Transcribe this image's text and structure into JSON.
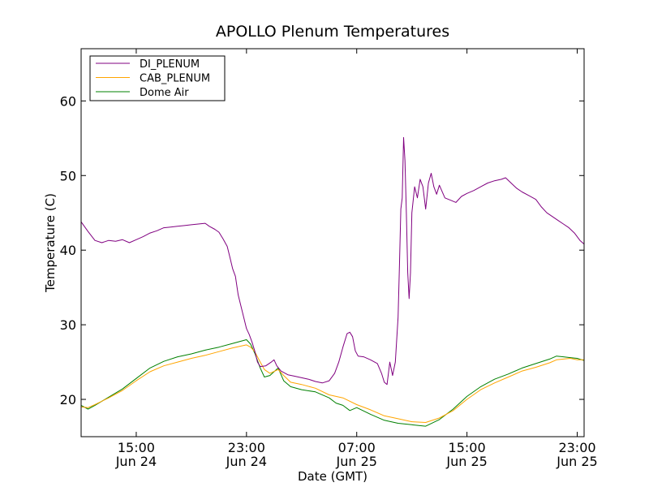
{
  "chart_data": {
    "type": "line",
    "title": "APOLLO Plenum Temperatures",
    "xlabel": "Date (GMT)",
    "ylabel": "Temperature (C)",
    "x_unit": "hours since Jun 24 00:00 GMT",
    "xlim": [
      11.0,
      47.5
    ],
    "ylim": [
      15,
      67
    ],
    "yticks": [
      20,
      30,
      40,
      50,
      60
    ],
    "xticks": [
      {
        "x": 15,
        "time": "15:00",
        "date": "Jun 24"
      },
      {
        "x": 23,
        "time": "23:00",
        "date": "Jun 24"
      },
      {
        "x": 31,
        "time": "07:00",
        "date": "Jun 25"
      },
      {
        "x": 39,
        "time": "15:00",
        "date": "Jun 25"
      },
      {
        "x": 47,
        "time": "23:00",
        "date": "Jun 25"
      }
    ],
    "legend_position": "top-left",
    "series": [
      {
        "name": "DI_PLENUM",
        "color": "#800080",
        "points": [
          [
            11.0,
            43.8
          ],
          [
            11.5,
            42.5
          ],
          [
            12.0,
            41.3
          ],
          [
            12.5,
            41.0
          ],
          [
            13.0,
            41.3
          ],
          [
            13.5,
            41.2
          ],
          [
            14.0,
            41.4
          ],
          [
            14.5,
            41.0
          ],
          [
            15.0,
            41.4
          ],
          [
            15.5,
            41.8
          ],
          [
            16.0,
            42.3
          ],
          [
            16.5,
            42.6
          ],
          [
            17.0,
            43.0
          ],
          [
            17.5,
            43.1
          ],
          [
            18.0,
            43.2
          ],
          [
            18.5,
            43.3
          ],
          [
            19.0,
            43.4
          ],
          [
            19.5,
            43.5
          ],
          [
            20.0,
            43.6
          ],
          [
            20.3,
            43.2
          ],
          [
            20.7,
            42.8
          ],
          [
            21.0,
            42.4
          ],
          [
            21.3,
            41.5
          ],
          [
            21.6,
            40.5
          ],
          [
            21.8,
            39.0
          ],
          [
            22.0,
            37.5
          ],
          [
            22.2,
            36.5
          ],
          [
            22.4,
            34.0
          ],
          [
            22.6,
            32.5
          ],
          [
            22.8,
            31.0
          ],
          [
            23.0,
            29.5
          ],
          [
            23.2,
            28.7
          ],
          [
            23.4,
            27.7
          ],
          [
            23.6,
            26.5
          ],
          [
            23.8,
            25.0
          ],
          [
            24.0,
            24.4
          ],
          [
            24.4,
            24.5
          ],
          [
            24.8,
            25.0
          ],
          [
            25.0,
            25.3
          ],
          [
            25.2,
            24.5
          ],
          [
            25.5,
            23.8
          ],
          [
            26.0,
            23.3
          ],
          [
            26.5,
            23.1
          ],
          [
            27.0,
            22.9
          ],
          [
            27.5,
            22.7
          ],
          [
            28.0,
            22.4
          ],
          [
            28.5,
            22.2
          ],
          [
            29.0,
            22.5
          ],
          [
            29.4,
            23.5
          ],
          [
            29.7,
            25.0
          ],
          [
            30.0,
            27.0
          ],
          [
            30.3,
            28.8
          ],
          [
            30.5,
            29.0
          ],
          [
            30.7,
            28.4
          ],
          [
            30.9,
            26.5
          ],
          [
            31.1,
            25.8
          ],
          [
            31.5,
            25.7
          ],
          [
            32.0,
            25.3
          ],
          [
            32.5,
            24.8
          ],
          [
            32.8,
            23.5
          ],
          [
            33.0,
            22.3
          ],
          [
            33.2,
            22.0
          ],
          [
            33.4,
            25.0
          ],
          [
            33.6,
            23.2
          ],
          [
            33.8,
            25.0
          ],
          [
            34.0,
            31.0
          ],
          [
            34.1,
            38.0
          ],
          [
            34.2,
            45.5
          ],
          [
            34.3,
            47.0
          ],
          [
            34.4,
            55.1
          ],
          [
            34.5,
            52.0
          ],
          [
            34.6,
            45.0
          ],
          [
            34.7,
            37.0
          ],
          [
            34.8,
            33.5
          ],
          [
            34.9,
            37.0
          ],
          [
            35.0,
            45.0
          ],
          [
            35.2,
            48.5
          ],
          [
            35.4,
            47.0
          ],
          [
            35.6,
            49.5
          ],
          [
            35.8,
            48.5
          ],
          [
            36.0,
            45.5
          ],
          [
            36.2,
            49.0
          ],
          [
            36.4,
            50.3
          ],
          [
            36.6,
            48.5
          ],
          [
            36.8,
            47.5
          ],
          [
            37.0,
            48.7
          ],
          [
            37.4,
            47.0
          ],
          [
            37.8,
            46.7
          ],
          [
            38.2,
            46.4
          ],
          [
            38.6,
            47.2
          ],
          [
            39.0,
            47.6
          ],
          [
            39.5,
            48.0
          ],
          [
            40.0,
            48.5
          ],
          [
            40.5,
            49.0
          ],
          [
            41.0,
            49.3
          ],
          [
            41.5,
            49.5
          ],
          [
            41.8,
            49.7
          ],
          [
            42.2,
            49.0
          ],
          [
            42.6,
            48.3
          ],
          [
            43.0,
            47.8
          ],
          [
            43.5,
            47.3
          ],
          [
            44.0,
            46.8
          ],
          [
            44.4,
            45.8
          ],
          [
            44.8,
            45.0
          ],
          [
            45.2,
            44.5
          ],
          [
            45.6,
            44.0
          ],
          [
            46.0,
            43.5
          ],
          [
            46.4,
            43.0
          ],
          [
            46.8,
            42.3
          ],
          [
            47.2,
            41.3
          ],
          [
            47.5,
            40.8
          ]
        ]
      },
      {
        "name": "CAB_PLENUM",
        "color": "#FFA500",
        "points": [
          [
            11.0,
            19.0
          ],
          [
            11.5,
            18.9
          ],
          [
            12.0,
            19.3
          ],
          [
            13.0,
            20.2
          ],
          [
            14.0,
            21.2
          ],
          [
            15.0,
            22.5
          ],
          [
            16.0,
            23.7
          ],
          [
            17.0,
            24.5
          ],
          [
            18.0,
            25.0
          ],
          [
            19.0,
            25.5
          ],
          [
            20.0,
            25.9
          ],
          [
            21.0,
            26.4
          ],
          [
            22.0,
            26.9
          ],
          [
            23.0,
            27.3
          ],
          [
            23.3,
            27.0
          ],
          [
            23.6,
            26.4
          ],
          [
            24.0,
            25.0
          ],
          [
            24.3,
            24.0
          ],
          [
            24.7,
            23.5
          ],
          [
            25.3,
            24.0
          ],
          [
            25.7,
            23.2
          ],
          [
            26.2,
            22.3
          ],
          [
            27.0,
            22.0
          ],
          [
            28.0,
            21.5
          ],
          [
            29.0,
            20.6
          ],
          [
            30.0,
            20.2
          ],
          [
            31.0,
            19.3
          ],
          [
            32.0,
            18.6
          ],
          [
            33.0,
            17.8
          ],
          [
            34.0,
            17.4
          ],
          [
            35.0,
            17.0
          ],
          [
            36.0,
            16.9
          ],
          [
            37.0,
            17.5
          ],
          [
            38.0,
            18.5
          ],
          [
            39.0,
            20.0
          ],
          [
            40.0,
            21.3
          ],
          [
            41.0,
            22.2
          ],
          [
            42.0,
            23.0
          ],
          [
            43.0,
            23.8
          ],
          [
            44.0,
            24.3
          ],
          [
            45.0,
            24.9
          ],
          [
            45.5,
            25.3
          ],
          [
            46.0,
            25.4
          ],
          [
            46.5,
            25.5
          ],
          [
            47.0,
            25.3
          ],
          [
            47.5,
            25.3
          ]
        ]
      },
      {
        "name": "Dome Air",
        "color": "#008000",
        "points": [
          [
            11.0,
            19.2
          ],
          [
            11.5,
            18.7
          ],
          [
            12.0,
            19.2
          ],
          [
            13.0,
            20.3
          ],
          [
            14.0,
            21.4
          ],
          [
            15.0,
            22.8
          ],
          [
            16.0,
            24.2
          ],
          [
            17.0,
            25.1
          ],
          [
            18.0,
            25.7
          ],
          [
            19.0,
            26.1
          ],
          [
            20.0,
            26.6
          ],
          [
            21.0,
            27.0
          ],
          [
            22.0,
            27.5
          ],
          [
            23.0,
            28.0
          ],
          [
            23.3,
            27.4
          ],
          [
            23.6,
            26.2
          ],
          [
            24.0,
            24.2
          ],
          [
            24.3,
            23.0
          ],
          [
            24.7,
            23.2
          ],
          [
            25.3,
            24.2
          ],
          [
            25.7,
            22.5
          ],
          [
            26.2,
            21.7
          ],
          [
            27.0,
            21.3
          ],
          [
            28.0,
            21.0
          ],
          [
            29.0,
            20.2
          ],
          [
            29.5,
            19.5
          ],
          [
            30.0,
            19.2
          ],
          [
            30.5,
            18.5
          ],
          [
            31.0,
            18.9
          ],
          [
            32.0,
            18.0
          ],
          [
            33.0,
            17.2
          ],
          [
            34.0,
            16.8
          ],
          [
            35.0,
            16.6
          ],
          [
            36.0,
            16.4
          ],
          [
            37.0,
            17.3
          ],
          [
            38.0,
            18.7
          ],
          [
            39.0,
            20.4
          ],
          [
            40.0,
            21.7
          ],
          [
            41.0,
            22.7
          ],
          [
            42.0,
            23.4
          ],
          [
            43.0,
            24.2
          ],
          [
            44.0,
            24.8
          ],
          [
            45.0,
            25.4
          ],
          [
            45.5,
            25.8
          ],
          [
            46.0,
            25.7
          ],
          [
            46.5,
            25.6
          ],
          [
            47.0,
            25.5
          ],
          [
            47.5,
            25.2
          ]
        ]
      }
    ]
  }
}
